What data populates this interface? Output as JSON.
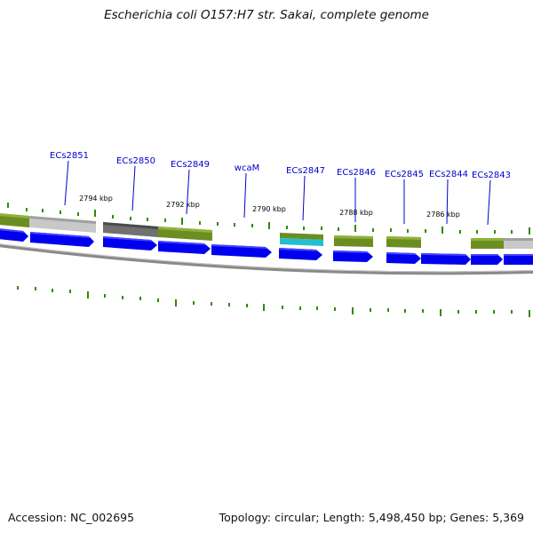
{
  "header": {
    "title": "Escherichia coli O157:H7 str. Sakai, complete genome"
  },
  "genes": [
    {
      "name": "ECs2851"
    },
    {
      "name": "ECs2850"
    },
    {
      "name": "ECs2849"
    },
    {
      "name": "wcaM"
    },
    {
      "name": "ECs2847"
    },
    {
      "name": "ECs2846"
    },
    {
      "name": "ECs2845"
    },
    {
      "name": "ECs2844"
    },
    {
      "name": "ECs2843"
    }
  ],
  "ruler": [
    "2794 kbp",
    "2792 kbp",
    "2790 kbp",
    "2788 kbp",
    "2786 kbp"
  ],
  "colors": {
    "gene_label": "#0000cc",
    "cds": "#0000ee",
    "feature_green": "#6b8e23",
    "feature_gray": "#c8c8c8",
    "feature_dark": "#707070",
    "feature_cyan": "#20c0d0",
    "backbone": "#8a8a8a",
    "tick": "#2e8b00"
  },
  "footer": {
    "accession": "Accession: NC_002695",
    "stats": "Topology: circular; Length: 5,498,450 bp; Genes: 5,369"
  }
}
